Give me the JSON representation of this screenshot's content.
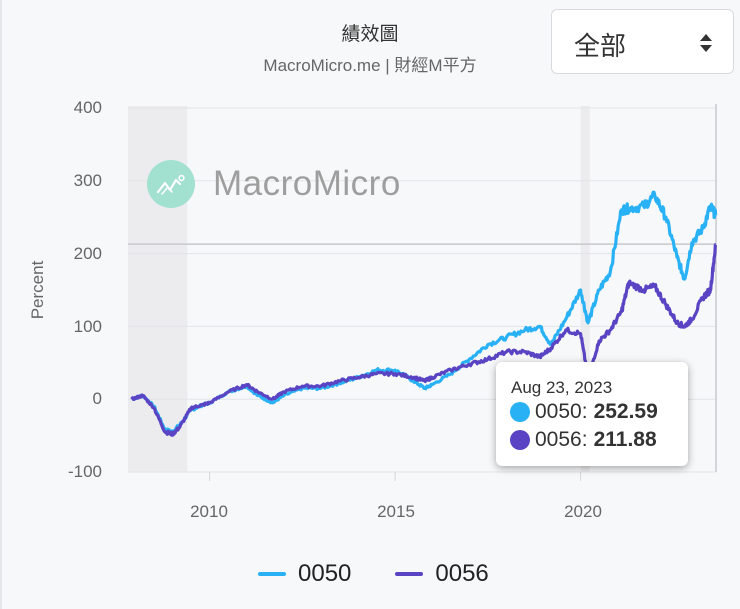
{
  "header": {
    "title": "績效圖",
    "subtitle": "MacroMicro.me | 財經M平方"
  },
  "range_select": {
    "selected": "全部",
    "icon": "sort-arrows-icon"
  },
  "watermark": {
    "text": "MacroMicro",
    "logo_color": "#9fe0cf"
  },
  "axes": {
    "y_label": "Percent",
    "y_ticks": [
      "400",
      "300",
      "200",
      "100",
      "0",
      "-100"
    ],
    "x_ticks": [
      "2010",
      "2015",
      "2020"
    ]
  },
  "tooltip": {
    "date": "Aug 23, 2023",
    "rows": [
      {
        "name": "0050",
        "label": "0050:",
        "value": "252.59",
        "color": "#29b1f5"
      },
      {
        "name": "0056",
        "label": "0056:",
        "value": "211.88",
        "color": "#5a44c4"
      }
    ]
  },
  "legend": {
    "items": [
      {
        "label": "0050",
        "color": "#29b1f5"
      },
      {
        "label": "0056",
        "color": "#5a44c4"
      }
    ]
  },
  "chart_data": {
    "type": "line",
    "title": "績效圖",
    "subtitle": "MacroMicro.me | 財經M平方",
    "xlabel": "",
    "ylabel": "Percent",
    "ylim": [
      -100,
      400
    ],
    "xlim": [
      2007.8,
      2023.65
    ],
    "y_ticks": [
      -100,
      0,
      100,
      200,
      300,
      400
    ],
    "x_ticks": [
      2010,
      2015,
      2020
    ],
    "grid": true,
    "legend_position": "bottom",
    "shaded_regions": [
      [
        2007.8,
        2009.4
      ],
      [
        2020.0,
        2020.25
      ]
    ],
    "crosshair_y": 213,
    "x": [
      2007.9,
      2008.2,
      2008.5,
      2008.8,
      2009.0,
      2009.2,
      2009.5,
      2009.8,
      2010.0,
      2010.5,
      2011.0,
      2011.3,
      2011.7,
      2012.0,
      2012.5,
      2013.0,
      2013.5,
      2014.0,
      2014.5,
      2015.0,
      2015.5,
      2015.8,
      2016.0,
      2016.5,
      2017.0,
      2017.5,
      2018.0,
      2018.5,
      2018.9,
      2019.2,
      2019.6,
      2020.0,
      2020.2,
      2020.5,
      2020.8,
      2021.1,
      2021.3,
      2021.7,
      2022.0,
      2022.3,
      2022.6,
      2022.8,
      2023.0,
      2023.3,
      2023.5,
      2023.64
    ],
    "series": [
      {
        "name": "0050",
        "color": "#29b1f5",
        "values": [
          0,
          5,
          -10,
          -42,
          -45,
          -35,
          -15,
          -8,
          -5,
          10,
          18,
          5,
          -5,
          5,
          15,
          15,
          22,
          30,
          40,
          40,
          25,
          15,
          20,
          35,
          55,
          75,
          85,
          95,
          100,
          75,
          110,
          150,
          105,
          150,
          175,
          260,
          262,
          265,
          280,
          250,
          195,
          165,
          215,
          235,
          265,
          252.59
        ]
      },
      {
        "name": "0056",
        "color": "#5a44c4",
        "values": [
          0,
          5,
          -12,
          -45,
          -48,
          -38,
          -12,
          -8,
          -5,
          10,
          20,
          10,
          0,
          10,
          18,
          18,
          25,
          30,
          35,
          35,
          30,
          25,
          30,
          40,
          48,
          55,
          65,
          65,
          58,
          70,
          95,
          90,
          30,
          80,
          95,
          120,
          160,
          150,
          155,
          130,
          105,
          100,
          110,
          140,
          150,
          211.88
        ]
      }
    ],
    "tooltip": {
      "date": "Aug 23, 2023",
      "0050": 252.59,
      "0056": 211.88
    }
  }
}
